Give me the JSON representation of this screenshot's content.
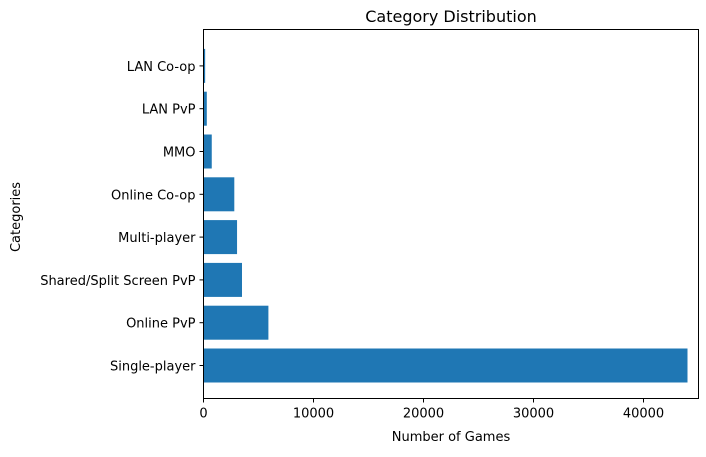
{
  "chart_data": {
    "type": "bar",
    "orientation": "horizontal",
    "title": "Category Distribution",
    "xlabel": "Number of Games",
    "ylabel": "Categories",
    "categories": [
      "Single-player",
      "Online PvP",
      "Shared/Split Screen PvP",
      "Multi-player",
      "Online Co-op",
      "MMO",
      "LAN PvP",
      "LAN Co-op"
    ],
    "values": [
      44000,
      5900,
      3500,
      3050,
      2800,
      750,
      300,
      150
    ],
    "xlim": [
      0,
      45000
    ],
    "xticks": [
      0,
      10000,
      20000,
      30000,
      40000
    ],
    "bar_color": "#1f77b4",
    "grid": false,
    "legend": "none"
  }
}
